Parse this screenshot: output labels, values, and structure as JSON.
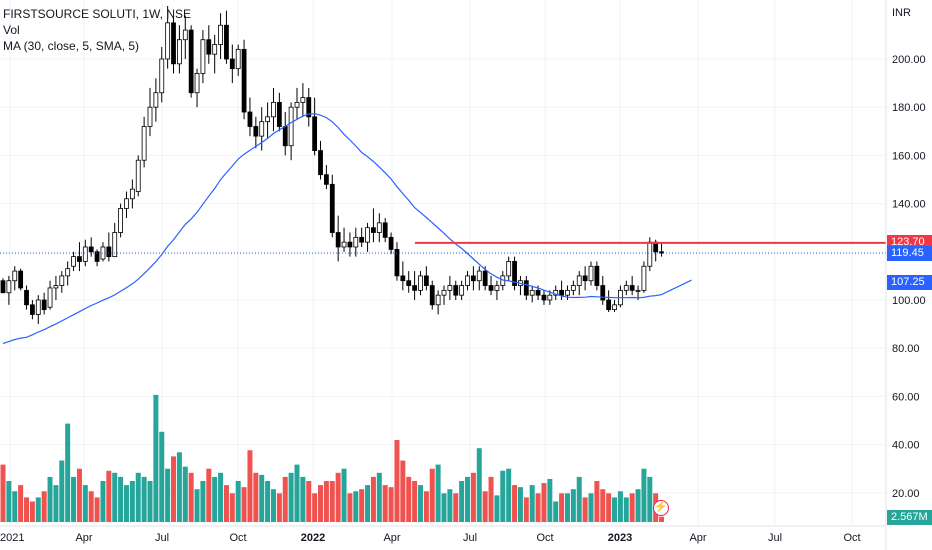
{
  "legend": {
    "symbol_line": "FIRSTSOURCE SOLUTI, 1W, NSE",
    "volume_label": "Vol",
    "ma_label": "MA (30, close, 5, SMA, 5)"
  },
  "price_axis": {
    "currency": "INR",
    "ticks": [
      "200.00",
      "180.00",
      "160.00",
      "140.00",
      "100.00",
      "80.00",
      "60.00",
      "40.00",
      "20.00"
    ]
  },
  "time_axis": {
    "labels": [
      "2021",
      "Apr",
      "Jul",
      "Oct",
      "2022",
      "Apr",
      "Jul",
      "Oct",
      "2023",
      "Apr",
      "Jul",
      "Oct"
    ]
  },
  "badges": {
    "resistance": "123.70",
    "last_price": "119.45",
    "ma_value": "107.25",
    "volume": "2.567M"
  },
  "colors": {
    "up": "#26a69a",
    "down": "#000000",
    "vol_up": "#26a69a",
    "vol_down": "#ef5350",
    "ma": "#2962ff",
    "resistance": "#f23645",
    "last_price": "#2962ff"
  },
  "chart_data": {
    "type": "candlestick",
    "interval": "1W",
    "price_range": [
      40,
      220
    ],
    "resistance_level": 123.7,
    "last_price": 119.45,
    "ma_last": 107.25,
    "first_week": "2020-12-28",
    "candles": [
      [
        108,
        109,
        103,
        103,
        28
      ],
      [
        103,
        110,
        98,
        108,
        20
      ],
      [
        108,
        114,
        104,
        112,
        15
      ],
      [
        112,
        113,
        104,
        105,
        18
      ],
      [
        104,
        106,
        96,
        98,
        12
      ],
      [
        98,
        100,
        92,
        94,
        10
      ],
      [
        94,
        102,
        90,
        100,
        12
      ],
      [
        100,
        103,
        94,
        96,
        15
      ],
      [
        97,
        108,
        96,
        105,
        22
      ],
      [
        105,
        110,
        100,
        106,
        18
      ],
      [
        106,
        112,
        103,
        110,
        30
      ],
      [
        110,
        116,
        106,
        113,
        48
      ],
      [
        114,
        120,
        112,
        118,
        22
      ],
      [
        118,
        124,
        112,
        116,
        26
      ],
      [
        116,
        125,
        114,
        122,
        18
      ],
      [
        122,
        126,
        118,
        120,
        15
      ],
      [
        120,
        121,
        114,
        116,
        12
      ],
      [
        117,
        124,
        116,
        122,
        20
      ],
      [
        122,
        128,
        116,
        118,
        25
      ],
      [
        118,
        132,
        118,
        128,
        24
      ],
      [
        128,
        140,
        126,
        138,
        22
      ],
      [
        138,
        145,
        134,
        142,
        18
      ],
      [
        142,
        150,
        138,
        146,
        20
      ],
      [
        145,
        160,
        143,
        158,
        24
      ],
      [
        158,
        176,
        155,
        172,
        22
      ],
      [
        172,
        188,
        168,
        180,
        20
      ],
      [
        180,
        192,
        174,
        186,
        62
      ],
      [
        186,
        205,
        182,
        200,
        44
      ],
      [
        200,
        222,
        196,
        215,
        26
      ],
      [
        215,
        218,
        194,
        198,
        32
      ],
      [
        198,
        214,
        194,
        208,
        34
      ],
      [
        208,
        218,
        200,
        212,
        27
      ],
      [
        212,
        214,
        184,
        186,
        24
      ],
      [
        186,
        196,
        180,
        194,
        16
      ],
      [
        194,
        212,
        190,
        208,
        20
      ],
      [
        208,
        214,
        198,
        202,
        26
      ],
      [
        202,
        210,
        194,
        206,
        22
      ],
      [
        206,
        219,
        200,
        214,
        24
      ],
      [
        214,
        220,
        198,
        200,
        18
      ],
      [
        200,
        206,
        190,
        196,
        14
      ],
      [
        196,
        206,
        193,
        204,
        20
      ],
      [
        204,
        208,
        175,
        178,
        17
      ],
      [
        178,
        184,
        168,
        172,
        35
      ],
      [
        172,
        176,
        163,
        168,
        24
      ],
      [
        168,
        180,
        162,
        174,
        23
      ],
      [
        174,
        182,
        167,
        176,
        20
      ],
      [
        176,
        188,
        170,
        182,
        16
      ],
      [
        182,
        186,
        170,
        172,
        14
      ],
      [
        172,
        178,
        160,
        164,
        22
      ],
      [
        164,
        182,
        158,
        180,
        24
      ],
      [
        180,
        188,
        175,
        182,
        28
      ],
      [
        182,
        190,
        176,
        184,
        22
      ],
      [
        184,
        188,
        172,
        176,
        20
      ],
      [
        176,
        184,
        160,
        162,
        14
      ],
      [
        162,
        166,
        150,
        152,
        18
      ],
      [
        152,
        156,
        146,
        148,
        20
      ],
      [
        148,
        152,
        126,
        128,
        20
      ],
      [
        128,
        135,
        116,
        122,
        24
      ],
      [
        122,
        130,
        120,
        124,
        26
      ],
      [
        124,
        128,
        118,
        122,
        14
      ],
      [
        122,
        130,
        118,
        126,
        15
      ],
      [
        126,
        130,
        122,
        124,
        16
      ],
      [
        124,
        132,
        120,
        130,
        18
      ],
      [
        130,
        138,
        124,
        128,
        22
      ],
      [
        128,
        136,
        124,
        132,
        24
      ],
      [
        132,
        134,
        124,
        126,
        18
      ],
      [
        126,
        128,
        119,
        121,
        17
      ],
      [
        121,
        124,
        108,
        110,
        40
      ],
      [
        110,
        116,
        104,
        108,
        30
      ],
      [
        108,
        112,
        103,
        106,
        22
      ],
      [
        106,
        112,
        100,
        104,
        20
      ],
      [
        104,
        112,
        102,
        110,
        18
      ],
      [
        110,
        114,
        104,
        106,
        15
      ],
      [
        106,
        108,
        96,
        98,
        26
      ],
      [
        98,
        104,
        94,
        102,
        28
      ],
      [
        102,
        106,
        98,
        104,
        14
      ],
      [
        104,
        110,
        100,
        106,
        16
      ],
      [
        106,
        108,
        100,
        102,
        14
      ],
      [
        102,
        108,
        100,
        106,
        20
      ],
      [
        106,
        112,
        104,
        110,
        22
      ],
      [
        110,
        114,
        104,
        108,
        24
      ],
      [
        108,
        114,
        104,
        112,
        36
      ],
      [
        112,
        114,
        104,
        106,
        15
      ],
      [
        106,
        110,
        102,
        104,
        22
      ],
      [
        104,
        108,
        100,
        106,
        13
      ],
      [
        106,
        112,
        104,
        110,
        25
      ],
      [
        110,
        118,
        108,
        116,
        26
      ],
      [
        116,
        118,
        104,
        106,
        18
      ],
      [
        106,
        110,
        102,
        108,
        17
      ],
      [
        108,
        110,
        100,
        102,
        12
      ],
      [
        102,
        106,
        99,
        104,
        18
      ],
      [
        104,
        106,
        100,
        102,
        14
      ],
      [
        102,
        104,
        98,
        100,
        19
      ],
      [
        100,
        104,
        98,
        102,
        21
      ],
      [
        102,
        106,
        100,
        104,
        10
      ],
      [
        104,
        108,
        100,
        102,
        14
      ],
      [
        102,
        106,
        100,
        104,
        14
      ],
      [
        104,
        108,
        102,
        106,
        16
      ],
      [
        106,
        112,
        102,
        110,
        22
      ],
      [
        110,
        114,
        104,
        108,
        12
      ],
      [
        108,
        116,
        106,
        114,
        14
      ],
      [
        114,
        116,
        104,
        106,
        20
      ],
      [
        106,
        110,
        98,
        100,
        16
      ],
      [
        100,
        104,
        95,
        96,
        14
      ],
      [
        96,
        100,
        95,
        98,
        12
      ],
      [
        98,
        106,
        97,
        104,
        15
      ],
      [
        104,
        108,
        102,
        106,
        12
      ],
      [
        106,
        110,
        102,
        104,
        14
      ],
      [
        104,
        106,
        100,
        104,
        16
      ],
      [
        104,
        116,
        103,
        114,
        26
      ],
      [
        114,
        126,
        112,
        124,
        22
      ],
      [
        124,
        125,
        116,
        120,
        14
      ],
      [
        120,
        124,
        118,
        119.45,
        2.567
      ]
    ]
  }
}
